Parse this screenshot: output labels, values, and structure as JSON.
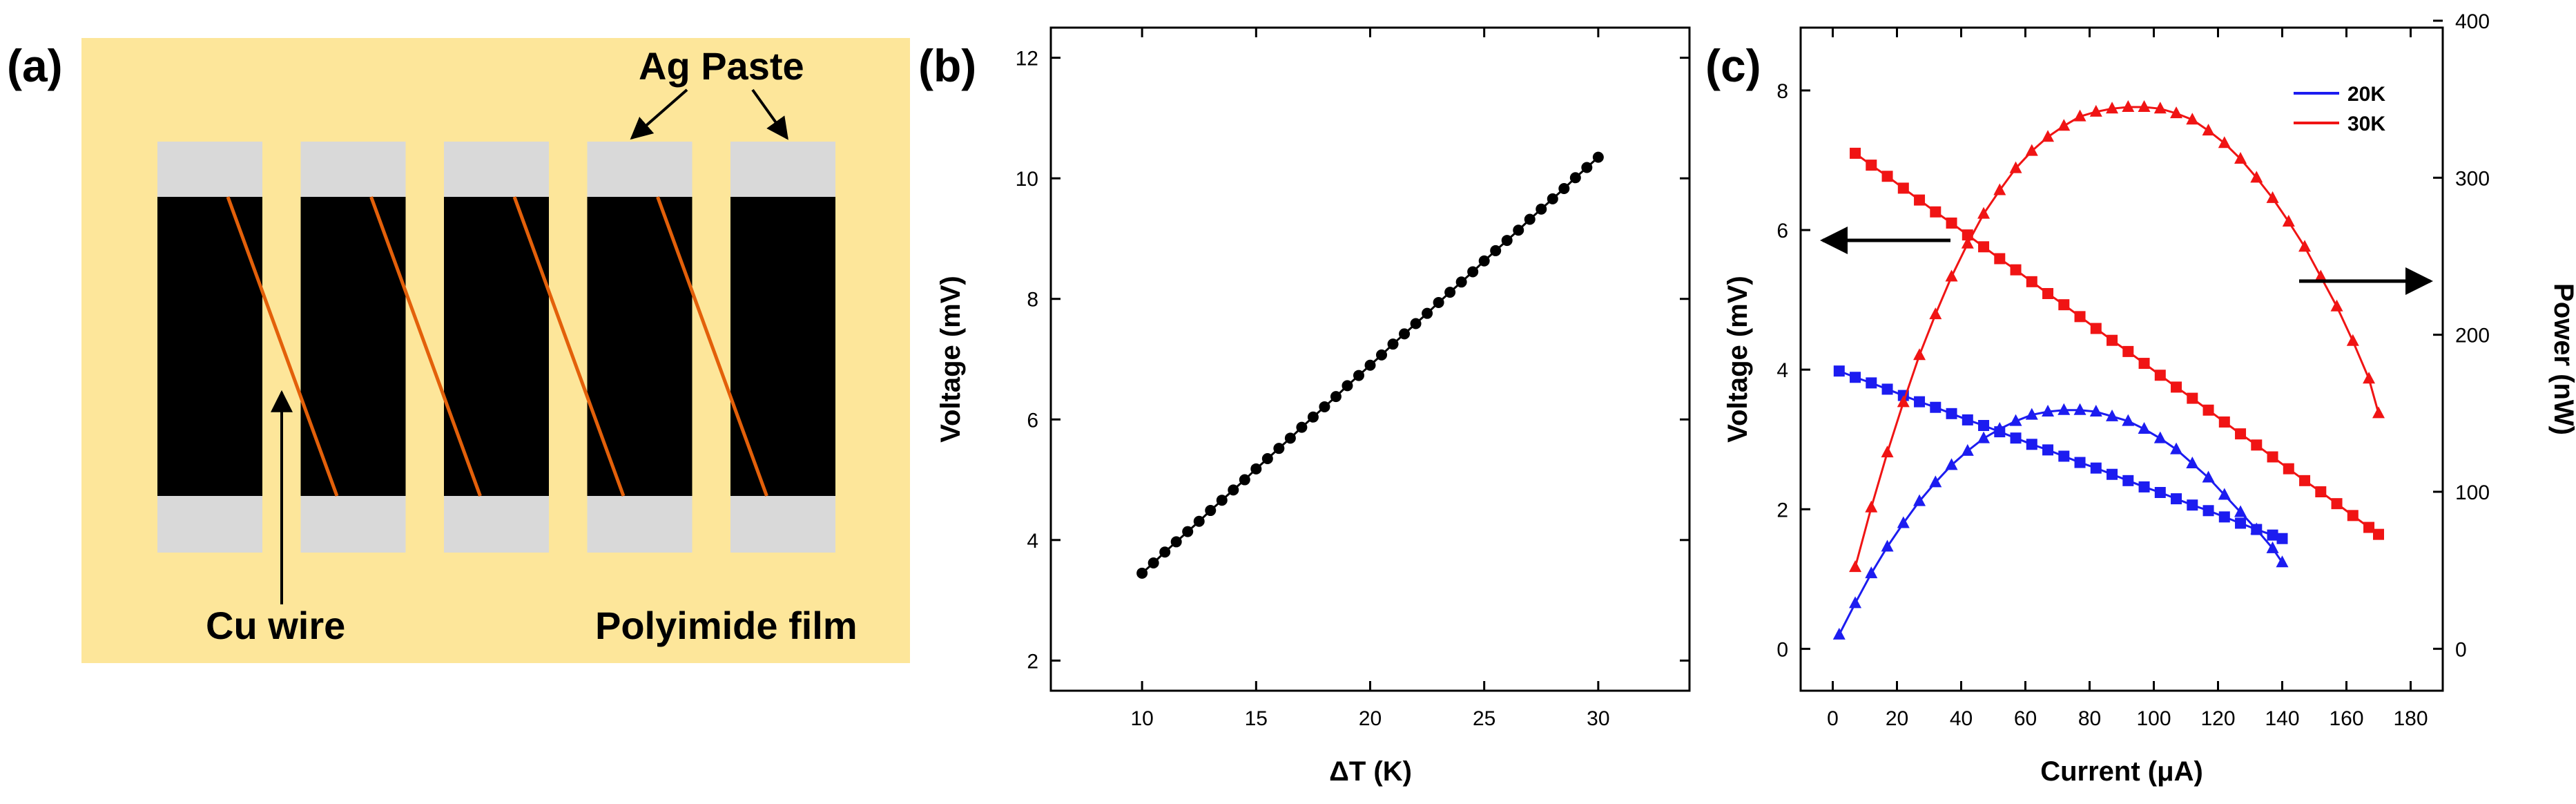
{
  "panels": {
    "a": {
      "label": "(a)",
      "annotations": {
        "ag_paste": "Ag Paste",
        "cu_wire": "Cu wire",
        "polyimide_film": "Polyimide film"
      },
      "colors": {
        "film": "#fde69a",
        "ag_paste": "#d9d9d9",
        "leg": "#000000",
        "cu_wire": "#e3600a"
      },
      "leg_count": 5
    },
    "b": {
      "label": "(b)"
    },
    "c": {
      "label": "(c)"
    }
  },
  "chart_data": [
    {
      "panel": "b",
      "type": "scatter",
      "title": "",
      "xlabel": "ΔT (K)",
      "ylabel": "Voltage (mV)",
      "xlim": [
        6,
        34
      ],
      "ylim": [
        1.5,
        12.5
      ],
      "xticks": [
        10,
        15,
        20,
        25,
        30
      ],
      "yticks": [
        2,
        4,
        6,
        8,
        10,
        12
      ],
      "grid": false,
      "series": [
        {
          "color": "#000000",
          "marker": "circle",
          "x": [
            10,
            10.5,
            11,
            11.5,
            12,
            12.5,
            13,
            13.5,
            14,
            14.5,
            15,
            15.5,
            16,
            16.5,
            17,
            17.5,
            18,
            18.5,
            19,
            19.5,
            20,
            20.5,
            21,
            21.5,
            22,
            22.5,
            23,
            23.5,
            24,
            24.5,
            25,
            25.5,
            26,
            26.5,
            27,
            27.5,
            28,
            28.5,
            29,
            29.5,
            30
          ],
          "y": [
            3.45,
            3.62,
            3.8,
            3.97,
            4.14,
            4.31,
            4.49,
            4.66,
            4.83,
            5.0,
            5.18,
            5.35,
            5.52,
            5.69,
            5.87,
            6.04,
            6.21,
            6.38,
            6.56,
            6.73,
            6.9,
            7.07,
            7.25,
            7.42,
            7.59,
            7.76,
            7.94,
            8.11,
            8.28,
            8.45,
            8.63,
            8.8,
            8.97,
            9.14,
            9.32,
            9.49,
            9.66,
            9.83,
            10.01,
            10.18,
            10.35
          ]
        }
      ]
    },
    {
      "panel": "c",
      "type": "line",
      "title": "",
      "xlabel": "Current (μA)",
      "ylabel": "Voltage (mV)",
      "y2label": "Power (nW)",
      "xlim": [
        -10,
        190
      ],
      "ylim": [
        -0.6,
        8.9
      ],
      "y2lim": [
        -26.7,
        395.6
      ],
      "xticks": [
        0,
        20,
        40,
        60,
        80,
        100,
        120,
        140,
        160,
        180
      ],
      "yticks": [
        0,
        2,
        4,
        6,
        8
      ],
      "y2ticks": [
        0,
        100,
        200,
        300,
        400
      ],
      "grid": false,
      "legend_position": "top-right",
      "series": [
        {
          "name": "20K",
          "quantity": "voltage",
          "axis": "left",
          "color": "#1c1cf0",
          "marker": "square",
          "x": [
            2,
            7,
            12,
            17,
            22,
            27,
            32,
            37,
            42,
            47,
            52,
            57,
            62,
            67,
            72,
            77,
            82,
            87,
            92,
            97,
            102,
            107,
            112,
            117,
            122,
            127,
            132,
            137,
            140
          ],
          "y": [
            3.98,
            3.89,
            3.81,
            3.72,
            3.63,
            3.54,
            3.46,
            3.37,
            3.28,
            3.2,
            3.11,
            3.02,
            2.93,
            2.85,
            2.76,
            2.67,
            2.59,
            2.5,
            2.41,
            2.32,
            2.24,
            2.15,
            2.06,
            1.98,
            1.89,
            1.8,
            1.71,
            1.63,
            1.58
          ]
        },
        {
          "name": "20K",
          "quantity": "power",
          "axis": "right",
          "color": "#1c1cf0",
          "marker": "triangle",
          "x": [
            2,
            7,
            12,
            17,
            22,
            27,
            32,
            37,
            42,
            47,
            52,
            57,
            62,
            67,
            72,
            77,
            82,
            87,
            92,
            97,
            102,
            107,
            112,
            117,
            122,
            127,
            132,
            137,
            140
          ],
          "y": [
            9,
            29,
            48,
            65,
            80,
            94,
            106,
            117,
            126,
            134,
            140,
            145,
            149,
            151,
            152,
            152,
            151,
            148,
            145,
            140,
            134,
            127,
            118,
            109,
            98,
            87,
            76,
            64,
            55
          ]
        },
        {
          "name": "30K",
          "quantity": "voltage",
          "axis": "left",
          "color": "#f01414",
          "marker": "square",
          "x": [
            7,
            12,
            17,
            22,
            27,
            32,
            37,
            42,
            47,
            52,
            57,
            62,
            67,
            72,
            77,
            82,
            87,
            92,
            97,
            102,
            107,
            112,
            117,
            122,
            127,
            132,
            137,
            142,
            147,
            152,
            157,
            162,
            167,
            170
          ],
          "y": [
            7.1,
            6.93,
            6.77,
            6.6,
            6.43,
            6.26,
            6.1,
            5.93,
            5.76,
            5.59,
            5.43,
            5.26,
            5.09,
            4.93,
            4.76,
            4.59,
            4.42,
            4.26,
            4.09,
            3.92,
            3.75,
            3.59,
            3.42,
            3.25,
            3.08,
            2.92,
            2.75,
            2.58,
            2.41,
            2.25,
            2.08,
            1.91,
            1.74,
            1.64
          ]
        },
        {
          "name": "30K",
          "quantity": "power",
          "axis": "right",
          "color": "#f01414",
          "marker": "triangle",
          "x": [
            7,
            12,
            17,
            22,
            27,
            32,
            37,
            42,
            47,
            52,
            57,
            62,
            67,
            72,
            77,
            82,
            87,
            92,
            97,
            102,
            107,
            112,
            117,
            122,
            127,
            132,
            137,
            142,
            147,
            152,
            157,
            162,
            167,
            170
          ],
          "y": [
            52,
            90,
            125,
            157,
            187,
            213,
            237,
            258,
            277,
            292,
            306,
            317,
            326,
            333,
            339,
            342,
            344,
            345,
            345,
            344,
            341,
            337,
            330,
            322,
            312,
            300,
            287,
            272,
            256,
            237,
            218,
            196,
            172,
            150
          ]
        }
      ],
      "arrow_notes": [
        "left arrow marks voltage curves (left axis)",
        "right arrow marks power curves (right axis)"
      ]
    }
  ]
}
